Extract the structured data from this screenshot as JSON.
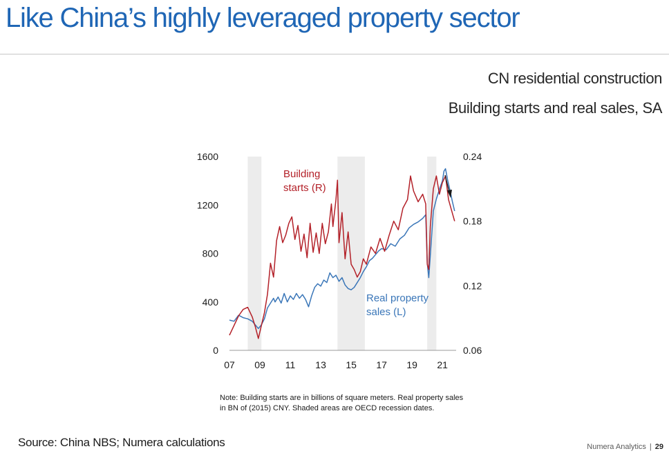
{
  "slide": {
    "title": "Like China’s highly leveraged property sector",
    "subtitle_1": "CN residential construction",
    "subtitle_2": "Building starts and real sales, SA",
    "note": "Note: Building starts are in billions of square meters. Real property sales in BN of (2015) CNY. Shaded areas are OECD recession dates.",
    "source": "Source: China NBS; Numera calculations",
    "footer_brand": "Numera Analytics",
    "footer_sep": "|",
    "page_number": "29"
  },
  "chart_data": {
    "type": "line",
    "x_ticks": [
      "07",
      "09",
      "11",
      "13",
      "15",
      "17",
      "19",
      "21"
    ],
    "x_range": [
      2007,
      2021.9
    ],
    "y_left": {
      "range": [
        0,
        1600
      ],
      "ticks": [
        "0",
        "400",
        "800",
        "1200",
        "1600"
      ]
    },
    "y_right": {
      "range": [
        0.06,
        0.24
      ],
      "ticks": [
        "0.06",
        "0.12",
        "0.18",
        "0.24"
      ]
    },
    "recession_shading": [
      [
        2008.2,
        2009.1
      ],
      [
        2014.1,
        2015.9
      ],
      [
        2020.0,
        2020.6
      ]
    ],
    "annotations": {
      "building_label_1": "Building",
      "building_label_2": "starts (R)",
      "sales_label_1": "Real property",
      "sales_label_2": "sales (L)",
      "arrow": "down-arrow"
    },
    "series": [
      {
        "name": "Real property sales (L)",
        "axis": "left",
        "color": "#3a76b8",
        "points": [
          [
            2007.0,
            250
          ],
          [
            2007.3,
            240
          ],
          [
            2007.6,
            290
          ],
          [
            2007.9,
            270
          ],
          [
            2008.2,
            260
          ],
          [
            2008.5,
            240
          ],
          [
            2008.7,
            210
          ],
          [
            2008.9,
            180
          ],
          [
            2009.1,
            210
          ],
          [
            2009.3,
            260
          ],
          [
            2009.5,
            350
          ],
          [
            2009.7,
            390
          ],
          [
            2009.9,
            430
          ],
          [
            2010.0,
            400
          ],
          [
            2010.2,
            440
          ],
          [
            2010.4,
            390
          ],
          [
            2010.6,
            470
          ],
          [
            2010.8,
            400
          ],
          [
            2011.0,
            450
          ],
          [
            2011.2,
            420
          ],
          [
            2011.4,
            470
          ],
          [
            2011.6,
            430
          ],
          [
            2011.8,
            460
          ],
          [
            2012.0,
            420
          ],
          [
            2012.2,
            360
          ],
          [
            2012.4,
            450
          ],
          [
            2012.6,
            520
          ],
          [
            2012.8,
            550
          ],
          [
            2013.0,
            530
          ],
          [
            2013.2,
            580
          ],
          [
            2013.4,
            560
          ],
          [
            2013.6,
            640
          ],
          [
            2013.8,
            600
          ],
          [
            2014.0,
            620
          ],
          [
            2014.2,
            570
          ],
          [
            2014.4,
            600
          ],
          [
            2014.6,
            540
          ],
          [
            2014.8,
            510
          ],
          [
            2015.0,
            500
          ],
          [
            2015.2,
            520
          ],
          [
            2015.4,
            560
          ],
          [
            2015.6,
            600
          ],
          [
            2015.8,
            650
          ],
          [
            2016.0,
            690
          ],
          [
            2016.2,
            740
          ],
          [
            2016.4,
            760
          ],
          [
            2016.6,
            790
          ],
          [
            2016.8,
            820
          ],
          [
            2017.0,
            840
          ],
          [
            2017.3,
            830
          ],
          [
            2017.6,
            880
          ],
          [
            2017.9,
            860
          ],
          [
            2018.2,
            920
          ],
          [
            2018.5,
            950
          ],
          [
            2018.8,
            1010
          ],
          [
            2019.1,
            1040
          ],
          [
            2019.4,
            1060
          ],
          [
            2019.7,
            1090
          ],
          [
            2019.9,
            1120
          ],
          [
            2020.0,
            720
          ],
          [
            2020.1,
            600
          ],
          [
            2020.2,
            780
          ],
          [
            2020.4,
            1150
          ],
          [
            2020.6,
            1250
          ],
          [
            2020.8,
            1330
          ],
          [
            2021.0,
            1400
          ],
          [
            2021.1,
            1480
          ],
          [
            2021.2,
            1500
          ],
          [
            2021.35,
            1400
          ],
          [
            2021.5,
            1320
          ],
          [
            2021.65,
            1230
          ],
          [
            2021.8,
            1150
          ]
        ]
      },
      {
        "name": "Building starts (R)",
        "axis": "right",
        "color": "#b32028",
        "points": [
          [
            2007.0,
            0.074
          ],
          [
            2007.3,
            0.083
          ],
          [
            2007.6,
            0.092
          ],
          [
            2007.9,
            0.098
          ],
          [
            2008.2,
            0.1
          ],
          [
            2008.5,
            0.091
          ],
          [
            2008.7,
            0.082
          ],
          [
            2008.9,
            0.071
          ],
          [
            2009.1,
            0.083
          ],
          [
            2009.3,
            0.095
          ],
          [
            2009.5,
            0.112
          ],
          [
            2009.7,
            0.141
          ],
          [
            2009.9,
            0.128
          ],
          [
            2010.1,
            0.162
          ],
          [
            2010.3,
            0.175
          ],
          [
            2010.5,
            0.16
          ],
          [
            2010.7,
            0.167
          ],
          [
            2010.9,
            0.178
          ],
          [
            2011.1,
            0.184
          ],
          [
            2011.3,
            0.163
          ],
          [
            2011.5,
            0.176
          ],
          [
            2011.7,
            0.152
          ],
          [
            2011.9,
            0.168
          ],
          [
            2012.1,
            0.146
          ],
          [
            2012.3,
            0.178
          ],
          [
            2012.5,
            0.151
          ],
          [
            2012.7,
            0.169
          ],
          [
            2012.9,
            0.15
          ],
          [
            2013.1,
            0.178
          ],
          [
            2013.3,
            0.159
          ],
          [
            2013.5,
            0.17
          ],
          [
            2013.7,
            0.196
          ],
          [
            2013.8,
            0.175
          ],
          [
            2014.0,
            0.2
          ],
          [
            2014.1,
            0.218
          ],
          [
            2014.2,
            0.16
          ],
          [
            2014.4,
            0.188
          ],
          [
            2014.6,
            0.145
          ],
          [
            2014.8,
            0.17
          ],
          [
            2015.0,
            0.14
          ],
          [
            2015.2,
            0.135
          ],
          [
            2015.4,
            0.128
          ],
          [
            2015.6,
            0.133
          ],
          [
            2015.8,
            0.145
          ],
          [
            2016.0,
            0.14
          ],
          [
            2016.3,
            0.156
          ],
          [
            2016.6,
            0.15
          ],
          [
            2016.9,
            0.164
          ],
          [
            2017.2,
            0.152
          ],
          [
            2017.5,
            0.167
          ],
          [
            2017.8,
            0.18
          ],
          [
            2018.1,
            0.172
          ],
          [
            2018.4,
            0.192
          ],
          [
            2018.7,
            0.2
          ],
          [
            2018.9,
            0.222
          ],
          [
            2019.1,
            0.208
          ],
          [
            2019.4,
            0.198
          ],
          [
            2019.7,
            0.205
          ],
          [
            2019.9,
            0.196
          ],
          [
            2020.0,
            0.14
          ],
          [
            2020.1,
            0.135
          ],
          [
            2020.2,
            0.175
          ],
          [
            2020.4,
            0.21
          ],
          [
            2020.6,
            0.222
          ],
          [
            2020.8,
            0.205
          ],
          [
            2021.0,
            0.216
          ],
          [
            2021.2,
            0.222
          ],
          [
            2021.4,
            0.2
          ],
          [
            2021.6,
            0.19
          ],
          [
            2021.8,
            0.18
          ]
        ]
      }
    ]
  }
}
